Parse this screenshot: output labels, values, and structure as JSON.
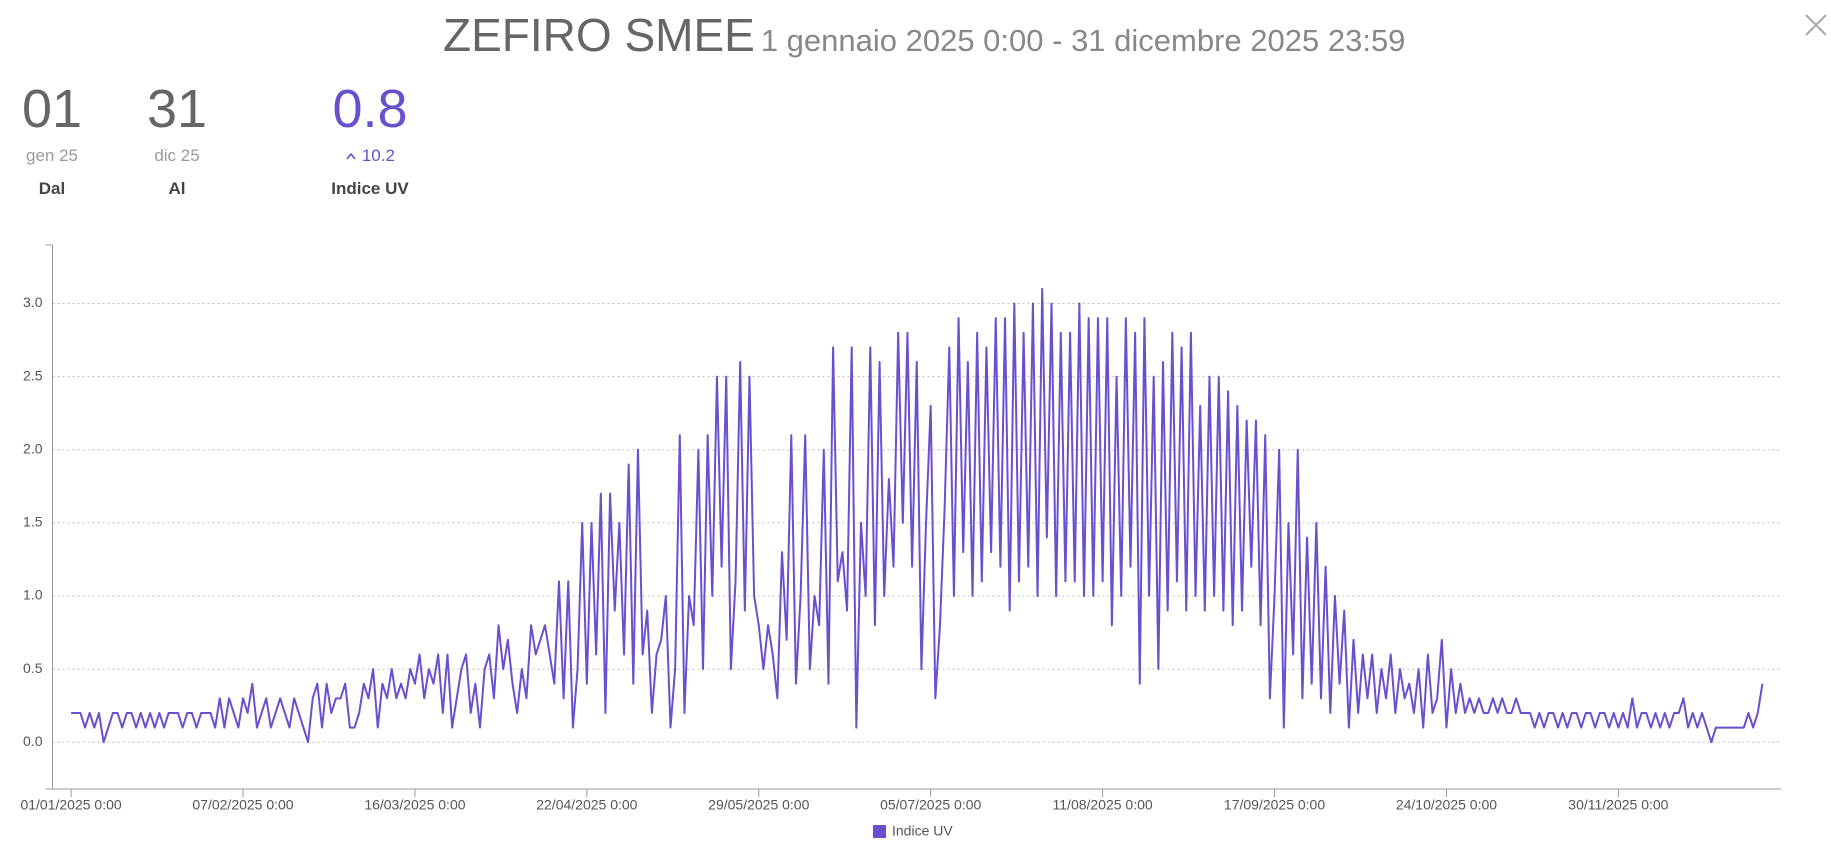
{
  "header": {
    "title": "ZEFIRO SMEE",
    "subtitle": "1 gennaio 2025 0:00 - 31 dicembre 2025 23:59"
  },
  "stats": [
    {
      "value": "01",
      "sub": "gen 25",
      "label": "Dal"
    },
    {
      "value": "31",
      "sub": "dic 25",
      "label": "Al"
    },
    {
      "value": "0.8",
      "sub": "10.2",
      "label": "Indice UV"
    }
  ],
  "chart_data": {
    "type": "line",
    "xlim": [
      -4,
      368
    ],
    "xticks": [
      {
        "value": 0,
        "label": "01/01/2025 0:00"
      },
      {
        "value": 37,
        "label": "07/02/2025 0:00"
      },
      {
        "value": 74,
        "label": "16/03/2025 0:00"
      },
      {
        "value": 111,
        "label": "22/04/2025 0:00"
      },
      {
        "value": 148,
        "label": "29/05/2025 0:00"
      },
      {
        "value": 185,
        "label": "05/07/2025 0:00"
      },
      {
        "value": 222,
        "label": "11/08/2025 0:00"
      },
      {
        "value": 259,
        "label": "17/09/2025 0:00"
      },
      {
        "value": 296,
        "label": "24/10/2025 0:00"
      },
      {
        "value": 333,
        "label": "30/11/2025 0:00"
      }
    ],
    "ylim": [
      -0.32,
      3.4
    ],
    "yticks": [
      {
        "value": 0,
        "label": "0.0"
      },
      0.5,
      {
        "value": 1,
        "label": "1.0"
      },
      1.5,
      {
        "value": 2,
        "label": "2.0"
      },
      2.5,
      {
        "value": 3,
        "label": "3.0"
      }
    ],
    "grid": true,
    "series": [
      {
        "name": "Indice UV",
        "color": "#6a4fcf",
        "values": [
          0.2,
          0.2,
          0.2,
          0.1,
          0.2,
          0.1,
          0.2,
          0.0,
          0.1,
          0.2,
          0.2,
          0.1,
          0.2,
          0.2,
          0.1,
          0.2,
          0.1,
          0.2,
          0.1,
          0.2,
          0.1,
          0.2,
          0.2,
          0.2,
          0.1,
          0.2,
          0.2,
          0.1,
          0.2,
          0.2,
          0.2,
          0.1,
          0.3,
          0.1,
          0.3,
          0.2,
          0.1,
          0.3,
          0.2,
          0.4,
          0.1,
          0.2,
          0.3,
          0.1,
          0.2,
          0.3,
          0.2,
          0.1,
          0.3,
          0.2,
          0.1,
          0.0,
          0.3,
          0.4,
          0.1,
          0.4,
          0.2,
          0.3,
          0.3,
          0.4,
          0.1,
          0.1,
          0.2,
          0.4,
          0.3,
          0.5,
          0.1,
          0.4,
          0.3,
          0.5,
          0.3,
          0.4,
          0.3,
          0.5,
          0.4,
          0.6,
          0.3,
          0.5,
          0.4,
          0.6,
          0.2,
          0.6,
          0.1,
          0.3,
          0.5,
          0.6,
          0.2,
          0.4,
          0.1,
          0.5,
          0.6,
          0.3,
          0.8,
          0.5,
          0.7,
          0.4,
          0.2,
          0.5,
          0.3,
          0.8,
          0.6,
          0.7,
          0.8,
          0.6,
          0.4,
          1.1,
          0.3,
          1.1,
          0.1,
          0.5,
          1.5,
          0.4,
          1.5,
          0.6,
          1.7,
          0.2,
          1.7,
          0.9,
          1.5,
          0.6,
          1.9,
          0.4,
          2.0,
          0.6,
          0.9,
          0.2,
          0.6,
          0.7,
          1.0,
          0.1,
          0.5,
          2.1,
          0.2,
          1.0,
          0.8,
          2.0,
          0.5,
          2.1,
          1.0,
          2.5,
          1.2,
          2.5,
          0.5,
          1.1,
          2.6,
          0.9,
          2.5,
          1.0,
          0.8,
          0.5,
          0.8,
          0.6,
          0.3,
          1.3,
          0.7,
          2.1,
          0.4,
          1.0,
          2.1,
          0.5,
          1.0,
          0.8,
          2.0,
          0.4,
          2.7,
          1.1,
          1.3,
          0.9,
          2.7,
          0.1,
          1.5,
          1.0,
          2.7,
          0.8,
          2.6,
          1.0,
          1.8,
          1.2,
          2.8,
          1.5,
          2.8,
          1.2,
          2.6,
          0.5,
          1.5,
          2.3,
          0.3,
          0.8,
          1.6,
          2.7,
          1.0,
          2.9,
          1.3,
          2.6,
          1.0,
          2.8,
          1.1,
          2.7,
          1.3,
          2.9,
          1.2,
          2.9,
          0.9,
          3.0,
          1.1,
          2.8,
          1.2,
          3.0,
          1.0,
          3.1,
          1.4,
          3.0,
          1.0,
          2.8,
          1.1,
          2.8,
          1.1,
          3.0,
          1.0,
          2.9,
          1.0,
          2.9,
          1.1,
          2.9,
          0.8,
          2.5,
          1.0,
          2.9,
          1.2,
          2.8,
          0.4,
          2.9,
          1.0,
          2.5,
          0.5,
          2.6,
          0.9,
          2.8,
          1.1,
          2.7,
          0.9,
          2.8,
          1.0,
          2.3,
          0.9,
          2.5,
          1.0,
          2.5,
          0.9,
          2.4,
          0.8,
          2.3,
          0.9,
          2.2,
          1.2,
          2.2,
          0.8,
          2.1,
          0.3,
          1.0,
          2.0,
          0.1,
          1.5,
          0.6,
          2.0,
          0.3,
          1.4,
          0.4,
          1.5,
          0.3,
          1.2,
          0.2,
          1.0,
          0.4,
          0.9,
          0.1,
          0.7,
          0.2,
          0.6,
          0.3,
          0.6,
          0.2,
          0.5,
          0.3,
          0.6,
          0.2,
          0.5,
          0.3,
          0.4,
          0.2,
          0.5,
          0.1,
          0.6,
          0.2,
          0.3,
          0.7,
          0.1,
          0.5,
          0.2,
          0.4,
          0.2,
          0.3,
          0.2,
          0.3,
          0.2,
          0.2,
          0.3,
          0.2,
          0.3,
          0.2,
          0.2,
          0.3,
          0.2,
          0.2,
          0.2,
          0.1,
          0.2,
          0.1,
          0.2,
          0.2,
          0.1,
          0.2,
          0.1,
          0.2,
          0.2,
          0.1,
          0.2,
          0.2,
          0.1,
          0.2,
          0.2,
          0.1,
          0.2,
          0.1,
          0.2,
          0.1,
          0.3,
          0.1,
          0.2,
          0.2,
          0.1,
          0.2,
          0.1,
          0.2,
          0.1,
          0.2,
          0.2,
          0.3,
          0.1,
          0.2,
          0.1,
          0.2,
          0.1,
          0.0,
          0.1,
          0.1,
          0.1,
          0.1,
          0.1,
          0.1,
          0.1,
          0.2,
          0.1,
          0.2,
          0.4
        ]
      }
    ]
  }
}
